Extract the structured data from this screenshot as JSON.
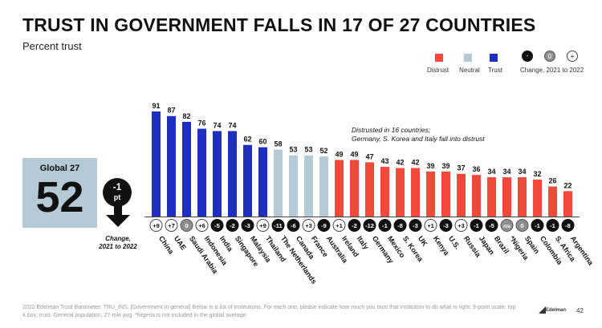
{
  "title": "TRUST IN GOVERNMENT FALLS IN 17 OF 27 COUNTRIES",
  "subtitle": "Percent trust",
  "legend": {
    "distrust": "Distrust",
    "neutral": "Neutral",
    "trust": "Trust",
    "change_label": "Change, 2021 to 2022",
    "symbols": [
      "-",
      "0",
      "+"
    ]
  },
  "colors": {
    "trust": "#1e2fbf",
    "neutral": "#b4cbd6",
    "distrust": "#f04a3b",
    "neg_change": "#111111",
    "zero_change": "#8e8e8e",
    "pos_change": "#ffffff"
  },
  "global": {
    "label": "Global 27",
    "value": "52",
    "change": "-1",
    "change_unit": "pt",
    "caption_line1": "Change,",
    "caption_line2": "2021 to 2022"
  },
  "annotation": {
    "line1": "Distrusted in 16 countries;",
    "line2": "Germany, S. Korea and Italy fall into distrust"
  },
  "chart_data": {
    "type": "bar",
    "title": "TRUST IN GOVERNMENT FALLS IN 17 OF 27 COUNTRIES",
    "ylabel": "Percent trust",
    "ylim": [
      0,
      100
    ],
    "grid": false,
    "legend_position": "top-right",
    "categories": [
      "China",
      "UAE",
      "Saudi Arabia",
      "Indonesia",
      "India",
      "Singapore",
      "Malaysia",
      "Thailand",
      "The Netherlands",
      "Canada",
      "France",
      "Australia",
      "Ireland",
      "Italy",
      "Germany",
      "Mexico",
      "S. Korea",
      "UK",
      "Kenya",
      "U.S.",
      "Russia",
      "Japan",
      "Brazil",
      "*Nigeria",
      "Spain",
      "Colombia",
      "S. Africa",
      "Argentina"
    ],
    "values": [
      91,
      87,
      82,
      76,
      74,
      74,
      62,
      60,
      58,
      53,
      53,
      52,
      49,
      49,
      47,
      43,
      42,
      42,
      39,
      39,
      37,
      36,
      34,
      34,
      34,
      32,
      26,
      22
    ],
    "zones": [
      "trust",
      "trust",
      "trust",
      "trust",
      "trust",
      "trust",
      "trust",
      "trust",
      "neutral",
      "neutral",
      "neutral",
      "neutral",
      "distrust",
      "distrust",
      "distrust",
      "distrust",
      "distrust",
      "distrust",
      "distrust",
      "distrust",
      "distrust",
      "distrust",
      "distrust",
      "distrust",
      "distrust",
      "distrust",
      "distrust",
      "distrust"
    ],
    "change_2021_to_2022": [
      "+9",
      "+7",
      "0",
      "+6",
      "-5",
      "-2",
      "-3",
      "+9",
      "-11",
      "-6",
      "+3",
      "-9",
      "+1",
      "-2",
      "-12",
      "-1",
      "-8",
      "-3",
      "+1",
      "-3",
      "+3",
      "-1",
      "-5",
      "n/a",
      "0",
      "-1",
      "-1",
      "-8"
    ]
  },
  "footnote": "2022 Edelman Trust Barometer. TRU_INS. [Government in general] Below is a list of institutions. For each one, please indicate how much you trust that institution to do what is right. 9-point scale; top 4 box, trust. General population, 27-mkt avg. *Nigeria is not included in the global average",
  "brand": "Edelman",
  "page_number": "42"
}
